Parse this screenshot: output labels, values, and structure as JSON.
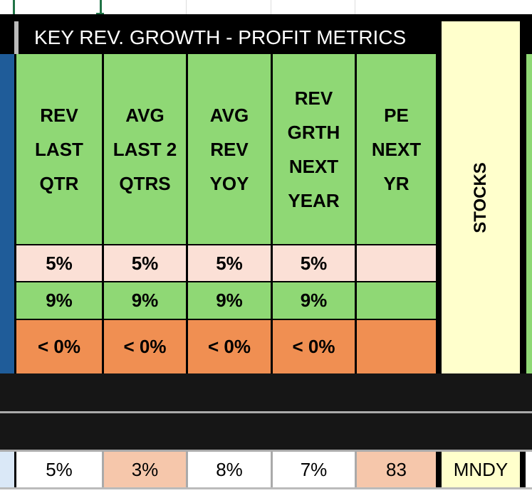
{
  "title": "KEY REV. GROWTH - PROFIT METRICS",
  "columns": [
    {
      "label": "REV LAST QTR",
      "lines": [
        "REV",
        "LAST",
        "QTR"
      ]
    },
    {
      "label": "AVG LAST 2 QTRS",
      "lines": [
        "AVG",
        "LAST 2",
        "QTRS"
      ]
    },
    {
      "label": "AVG REV YOY",
      "lines": [
        "AVG",
        "REV",
        "YOY"
      ]
    },
    {
      "label": "REV GRTH NEXT YEAR",
      "lines": [
        "REV",
        "GRTH",
        "NEXT",
        "YEAR"
      ]
    },
    {
      "label": "PE NEXT YR",
      "lines": [
        "PE",
        "NEXT",
        "YR"
      ]
    }
  ],
  "stocks_label": "STOCKS",
  "legend_rows": [
    {
      "values": [
        "5%",
        "5%",
        "5%",
        "5%",
        ""
      ],
      "color": "#fbe0d6"
    },
    {
      "values": [
        "9%",
        "9%",
        "9%",
        "9%",
        ""
      ],
      "color": "#8fd875"
    },
    {
      "values": [
        "< 0%",
        "< 0%",
        "< 0%",
        "< 0%",
        ""
      ],
      "color": "#f08f52"
    }
  ],
  "data_row": {
    "values": [
      "5%",
      "3%",
      "8%",
      "7%",
      "83"
    ],
    "colors": [
      "#ffffff",
      "#f6c7ab",
      "#ffffff",
      "#ffffff",
      "#f6c7ab"
    ],
    "ticker": "MNDY"
  }
}
